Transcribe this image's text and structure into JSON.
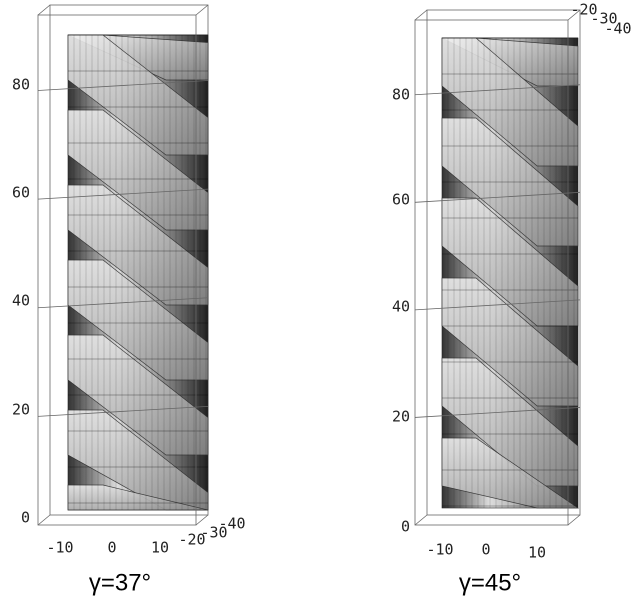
{
  "panels": [
    {
      "caption": "γ=37°",
      "z_ticks": [
        "0",
        "20",
        "40",
        "60",
        "80"
      ],
      "x_ticks": [
        "-10",
        "0",
        "10"
      ],
      "y_ticks": [
        "-20",
        "-30",
        "-40"
      ]
    },
    {
      "caption": "γ=45°",
      "z_ticks": [
        "0",
        "20",
        "40",
        "60",
        "80"
      ],
      "x_ticks": [
        "-10",
        "0",
        "10"
      ],
      "y_ticks": [
        "-20",
        "-30",
        "-40"
      ]
    }
  ]
}
